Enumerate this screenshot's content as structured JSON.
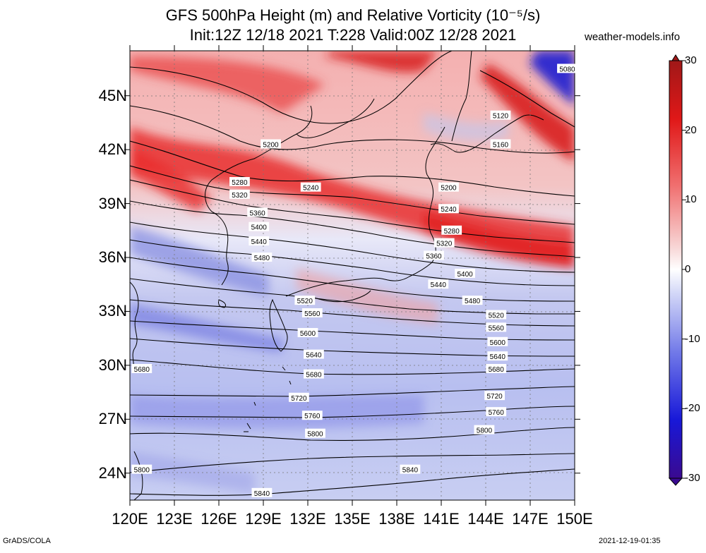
{
  "header": {
    "title_line1": "GFS 500hPa Height (m) and Relative Vorticity (10⁻⁵/s)",
    "title_line2": "Init:12Z 12/18 2021 T:228 Valid:00Z 12/28 2021",
    "site": "weather-models.info"
  },
  "footer": {
    "left": "GrADS/COLA",
    "right": "2021-12-19-01:35"
  },
  "axes": {
    "lat_labels": [
      "45N",
      "42N",
      "39N",
      "36N",
      "33N",
      "30N",
      "27N",
      "24N"
    ],
    "lat_values": [
      45,
      42,
      39,
      36,
      33,
      30,
      27,
      24
    ],
    "lon_labels": [
      "120E",
      "123E",
      "126E",
      "129E",
      "132E",
      "135E",
      "138E",
      "141E",
      "144E",
      "147E",
      "150E"
    ],
    "lon_values": [
      120,
      123,
      126,
      129,
      132,
      135,
      138,
      141,
      144,
      147,
      150
    ],
    "lon_range": [
      120,
      150
    ],
    "lat_range": [
      22.5,
      47.5
    ]
  },
  "colorbar": {
    "labels": [
      "30",
      "20",
      "10",
      "0",
      "-10",
      "-20",
      "-30"
    ],
    "values": [
      30,
      20,
      10,
      0,
      -10,
      -20,
      -30
    ],
    "range": [
      -30,
      30
    ]
  },
  "chart_data": {
    "type": "heatmap",
    "title": "GFS 500hPa Height (m) and Relative Vorticity (10⁻⁵/s)",
    "contour_field": "500hPa geopotential height (m)",
    "contour_interval": 40,
    "contour_labels": [
      {
        "value": "5080",
        "lon": 149.5,
        "lat": 46.5
      },
      {
        "value": "5120",
        "lon": 145.0,
        "lat": 43.9
      },
      {
        "value": "5160",
        "lon": 145.0,
        "lat": 42.3
      },
      {
        "value": "5200",
        "lon": 129.5,
        "lat": 42.3
      },
      {
        "value": "5200",
        "lon": 141.5,
        "lat": 39.9
      },
      {
        "value": "5240",
        "lon": 132.2,
        "lat": 39.9
      },
      {
        "value": "5240",
        "lon": 141.5,
        "lat": 38.7
      },
      {
        "value": "5280",
        "lon": 127.4,
        "lat": 40.2
      },
      {
        "value": "5280",
        "lon": 141.7,
        "lat": 37.5
      },
      {
        "value": "5320",
        "lon": 127.4,
        "lat": 39.5
      },
      {
        "value": "5320",
        "lon": 141.2,
        "lat": 36.8
      },
      {
        "value": "5360",
        "lon": 128.6,
        "lat": 38.5
      },
      {
        "value": "5360",
        "lon": 140.5,
        "lat": 36.1
      },
      {
        "value": "5400",
        "lon": 128.7,
        "lat": 37.7
      },
      {
        "value": "5400",
        "lon": 142.6,
        "lat": 35.1
      },
      {
        "value": "5440",
        "lon": 128.7,
        "lat": 36.9
      },
      {
        "value": "5440",
        "lon": 140.8,
        "lat": 34.5
      },
      {
        "value": "5480",
        "lon": 128.9,
        "lat": 36.0
      },
      {
        "value": "5480",
        "lon": 143.1,
        "lat": 33.6
      },
      {
        "value": "5520",
        "lon": 131.8,
        "lat": 33.6
      },
      {
        "value": "5520",
        "lon": 144.7,
        "lat": 32.8
      },
      {
        "value": "5560",
        "lon": 132.3,
        "lat": 32.9
      },
      {
        "value": "5560",
        "lon": 144.7,
        "lat": 32.1
      },
      {
        "value": "5600",
        "lon": 132.0,
        "lat": 31.8
      },
      {
        "value": "5600",
        "lon": 144.8,
        "lat": 31.3
      },
      {
        "value": "5640",
        "lon": 132.4,
        "lat": 30.6
      },
      {
        "value": "5640",
        "lon": 144.8,
        "lat": 30.5
      },
      {
        "value": "5680",
        "lon": 120.8,
        "lat": 29.8
      },
      {
        "value": "5680",
        "lon": 132.4,
        "lat": 29.5
      },
      {
        "value": "5680",
        "lon": 144.7,
        "lat": 29.8
      },
      {
        "value": "5720",
        "lon": 131.4,
        "lat": 28.2
      },
      {
        "value": "5720",
        "lon": 144.6,
        "lat": 28.3
      },
      {
        "value": "5760",
        "lon": 132.3,
        "lat": 27.2
      },
      {
        "value": "5760",
        "lon": 144.7,
        "lat": 27.4
      },
      {
        "value": "5800",
        "lon": 132.5,
        "lat": 26.2
      },
      {
        "value": "5800",
        "lon": 143.9,
        "lat": 26.4
      },
      {
        "value": "5800",
        "lon": 120.8,
        "lat": 24.2
      },
      {
        "value": "5840",
        "lon": 138.9,
        "lat": 24.2
      },
      {
        "value": "5840",
        "lon": 128.9,
        "lat": 22.9
      }
    ]
  },
  "colors": {
    "accent_red": "#e01010",
    "accent_blue": "#1010e0",
    "contour": "#000000"
  }
}
